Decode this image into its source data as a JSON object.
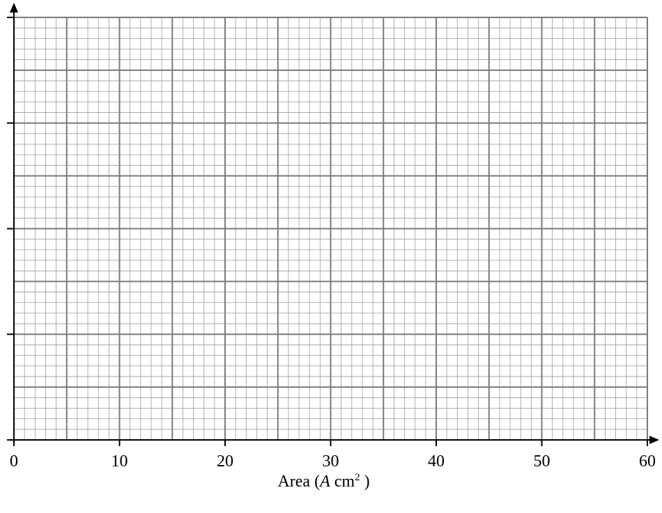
{
  "chart_data": {
    "type": "scatter",
    "title": "",
    "xlabel": {
      "prefix": "Area (",
      "variable": "A",
      "unit": " cm",
      "unit_power": "2",
      "suffix": " )"
    },
    "ylabel": "",
    "xlim": [
      0,
      60
    ],
    "x_major_ticks": [
      0,
      10,
      20,
      30,
      40,
      50,
      60
    ],
    "x_tick_labels": [
      "0",
      "10",
      "20",
      "30",
      "40",
      "50",
      "60"
    ],
    "x_grid_major": 5,
    "x_grid_minor_per_major": 5,
    "y_tick_count": 4,
    "y_grid_major_count": 8,
    "y_grid_minor_per_major": 5,
    "y_tick_labels": [],
    "grid": true,
    "legend": "none",
    "series": []
  }
}
